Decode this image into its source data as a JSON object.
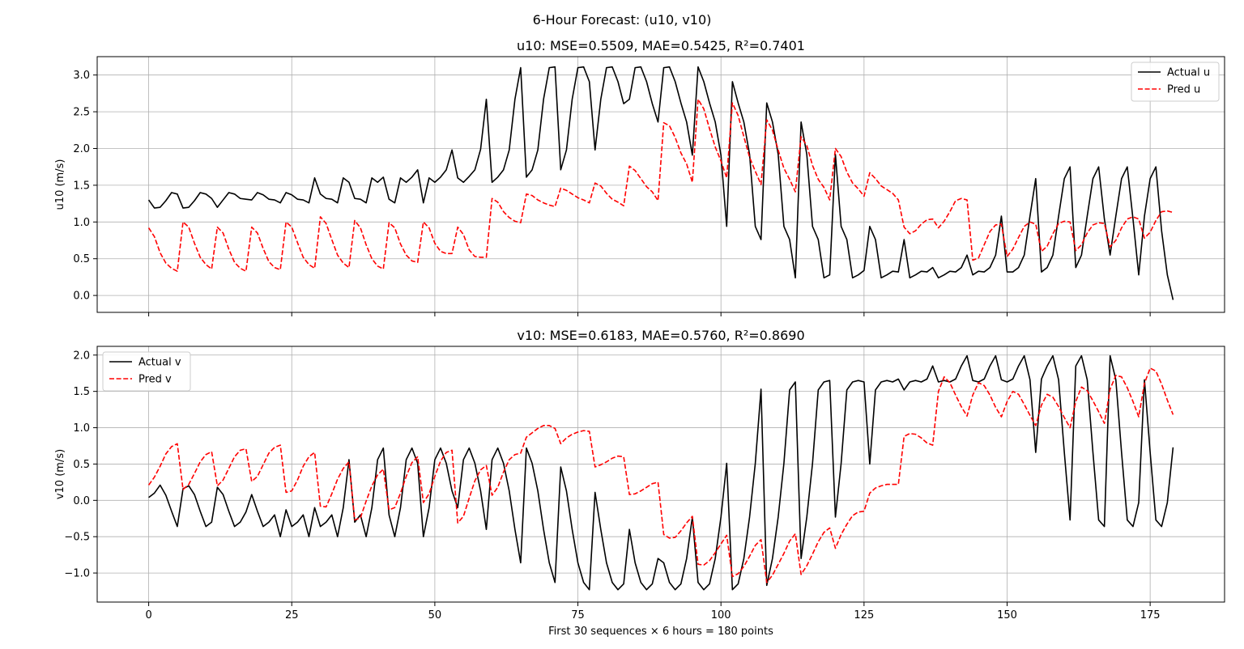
{
  "figure": {
    "title": "6-Hour Forecast: (u10, v10)",
    "xlabel": "First 30 sequences × 6 hours = 180 points"
  },
  "chart_data": [
    {
      "type": "line",
      "title": "u10: MSE=0.5509, MAE=0.5425, R²=0.7401",
      "xlabel": "",
      "ylabel": "u10 (m/s)",
      "xlim": [
        -9,
        188
      ],
      "ylim": [
        -0.23,
        3.25
      ],
      "xticks": [
        0,
        25,
        50,
        75,
        100,
        125,
        150,
        175
      ],
      "yticks": [
        0.0,
        0.5,
        1.0,
        1.5,
        2.0,
        2.5,
        3.0
      ],
      "ytick_labels": [
        "0.0",
        "0.5",
        "1.0",
        "1.5",
        "2.0",
        "2.5",
        "3.0"
      ],
      "grid": true,
      "legend_position": "upper right",
      "series": [
        {
          "name": "Actual u",
          "color": "#000000",
          "style": "solid",
          "values": [
            1.3,
            1.19,
            1.2,
            1.29,
            1.4,
            1.38,
            1.19,
            1.2,
            1.29,
            1.4,
            1.38,
            1.32,
            1.2,
            1.3,
            1.4,
            1.38,
            1.32,
            1.31,
            1.3,
            1.4,
            1.37,
            1.31,
            1.3,
            1.26,
            1.4,
            1.37,
            1.31,
            1.3,
            1.26,
            1.6,
            1.38,
            1.32,
            1.31,
            1.26,
            1.6,
            1.54,
            1.32,
            1.31,
            1.26,
            1.6,
            1.54,
            1.61,
            1.31,
            1.26,
            1.6,
            1.54,
            1.61,
            1.71,
            1.26,
            1.6,
            1.54,
            1.61,
            1.71,
            1.98,
            1.6,
            1.54,
            1.62,
            1.71,
            1.99,
            2.67,
            1.54,
            1.61,
            1.71,
            1.98,
            2.67,
            3.1,
            1.61,
            1.71,
            1.98,
            2.67,
            3.1,
            3.11,
            1.71,
            1.98,
            2.67,
            3.1,
            3.11,
            2.91,
            1.98,
            2.67,
            3.1,
            3.11,
            2.91,
            2.61,
            2.67,
            3.1,
            3.11,
            2.91,
            2.61,
            2.36,
            3.1,
            3.11,
            2.91,
            2.62,
            2.36,
            1.91,
            3.11,
            2.91,
            2.62,
            2.36,
            1.91,
            0.94,
            2.91,
            2.62,
            2.36,
            1.92,
            0.94,
            0.76,
            2.62,
            2.36,
            1.92,
            0.94,
            0.76,
            0.24,
            2.36,
            1.92,
            0.94,
            0.76,
            0.24,
            0.28,
            1.92,
            0.94,
            0.76,
            0.24,
            0.28,
            0.34,
            0.94,
            0.76,
            0.24,
            0.28,
            0.33,
            0.32,
            0.76,
            0.24,
            0.28,
            0.33,
            0.32,
            0.38,
            0.24,
            0.28,
            0.33,
            0.32,
            0.38,
            0.55,
            0.28,
            0.33,
            0.32,
            0.38,
            0.55,
            1.08,
            0.32,
            0.32,
            0.38,
            0.55,
            1.08,
            1.59,
            0.32,
            0.38,
            0.55,
            1.08,
            1.59,
            1.75,
            0.38,
            0.55,
            1.08,
            1.59,
            1.75,
            1.04,
            0.55,
            1.08,
            1.59,
            1.75,
            1.04,
            0.28,
            1.08,
            1.59,
            1.75,
            0.88,
            0.28,
            -0.06
          ]
        },
        {
          "name": "Pred u",
          "color": "#ff0000",
          "style": "dashed",
          "values": [
            0.92,
            0.8,
            0.58,
            0.44,
            0.37,
            0.33,
            1.0,
            0.93,
            0.71,
            0.52,
            0.42,
            0.36,
            0.93,
            0.85,
            0.63,
            0.45,
            0.37,
            0.33,
            0.93,
            0.85,
            0.64,
            0.46,
            0.38,
            0.35,
            1.0,
            0.93,
            0.72,
            0.52,
            0.42,
            0.37,
            1.07,
            0.98,
            0.76,
            0.55,
            0.44,
            0.38,
            1.02,
            0.92,
            0.69,
            0.5,
            0.4,
            0.36,
            0.99,
            0.92,
            0.7,
            0.55,
            0.47,
            0.45,
            1.0,
            0.92,
            0.71,
            0.6,
            0.57,
            0.57,
            0.93,
            0.83,
            0.62,
            0.53,
            0.52,
            0.52,
            1.32,
            1.27,
            1.14,
            1.06,
            1.01,
            0.99,
            1.38,
            1.36,
            1.3,
            1.26,
            1.23,
            1.21,
            1.46,
            1.43,
            1.38,
            1.33,
            1.3,
            1.26,
            1.53,
            1.49,
            1.39,
            1.31,
            1.27,
            1.22,
            1.76,
            1.7,
            1.59,
            1.48,
            1.41,
            1.29,
            2.35,
            2.31,
            2.15,
            1.94,
            1.79,
            1.54,
            2.67,
            2.54,
            2.27,
            2.02,
            1.83,
            1.6,
            2.62,
            2.45,
            2.16,
            1.88,
            1.69,
            1.51,
            2.39,
            2.25,
            1.98,
            1.73,
            1.58,
            1.41,
            2.16,
            2.04,
            1.77,
            1.58,
            1.47,
            1.3,
            2.0,
            1.89,
            1.68,
            1.53,
            1.45,
            1.35,
            1.67,
            1.59,
            1.49,
            1.44,
            1.39,
            1.3,
            0.93,
            0.84,
            0.88,
            0.97,
            1.03,
            1.04,
            0.92,
            1.01,
            1.14,
            1.29,
            1.32,
            1.3,
            0.48,
            0.51,
            0.69,
            0.87,
            0.96,
            0.97,
            0.53,
            0.63,
            0.79,
            0.94,
            1.0,
            0.97,
            0.6,
            0.67,
            0.84,
            0.98,
            1.01,
            1.0,
            0.61,
            0.69,
            0.85,
            0.96,
            0.99,
            0.98,
            0.66,
            0.75,
            0.92,
            1.04,
            1.07,
            1.04,
            0.78,
            0.86,
            1.02,
            1.14,
            1.15,
            1.13
          ]
        }
      ]
    },
    {
      "type": "line",
      "title": "v10: MSE=0.6183, MAE=0.5760, R²=0.8690",
      "xlabel": "First 30 sequences × 6 hours = 180 points",
      "ylabel": "v10 (m/s)",
      "xlim": [
        -9,
        188
      ],
      "ylim": [
        -1.4,
        2.12
      ],
      "xticks": [
        0,
        25,
        50,
        75,
        100,
        125,
        150,
        175
      ],
      "yticks": [
        -1.0,
        -0.5,
        0.0,
        0.5,
        1.0,
        1.5,
        2.0
      ],
      "ytick_labels": [
        "−1.0",
        "−0.5",
        "0.0",
        "0.5",
        "1.0",
        "1.5",
        "2.0"
      ],
      "grid": true,
      "legend_position": "upper left",
      "series": [
        {
          "name": "Actual v",
          "color": "#000000",
          "style": "solid",
          "values": [
            0.04,
            0.1,
            0.21,
            0.07,
            -0.15,
            -0.36,
            0.16,
            0.2,
            0.08,
            -0.15,
            -0.36,
            -0.3,
            0.18,
            0.08,
            -0.15,
            -0.36,
            -0.3,
            -0.16,
            0.08,
            -0.15,
            -0.36,
            -0.3,
            -0.2,
            -0.5,
            -0.13,
            -0.36,
            -0.3,
            -0.2,
            -0.5,
            -0.1,
            -0.36,
            -0.3,
            -0.2,
            -0.5,
            -0.1,
            0.56,
            -0.3,
            -0.2,
            -0.5,
            -0.1,
            0.56,
            0.72,
            -0.2,
            -0.5,
            -0.1,
            0.56,
            0.72,
            0.51,
            -0.5,
            -0.1,
            0.56,
            0.72,
            0.51,
            0.13,
            -0.1,
            0.56,
            0.72,
            0.51,
            0.13,
            -0.4,
            0.56,
            0.72,
            0.51,
            0.13,
            -0.4,
            -0.86,
            0.72,
            0.51,
            0.13,
            -0.4,
            -0.86,
            -1.13,
            0.46,
            0.13,
            -0.4,
            -0.86,
            -1.13,
            -1.23,
            0.11,
            -0.4,
            -0.86,
            -1.13,
            -1.23,
            -1.15,
            -0.4,
            -0.86,
            -1.13,
            -1.23,
            -1.15,
            -0.8,
            -0.86,
            -1.13,
            -1.23,
            -1.15,
            -0.8,
            -0.23,
            -1.13,
            -1.23,
            -1.15,
            -0.8,
            -0.23,
            0.51,
            -1.23,
            -1.15,
            -0.8,
            -0.23,
            0.51,
            1.53,
            -1.17,
            -0.8,
            -0.23,
            0.51,
            1.52,
            1.63,
            -0.8,
            -0.23,
            0.51,
            1.52,
            1.63,
            1.65,
            -0.23,
            0.51,
            1.52,
            1.63,
            1.65,
            1.63,
            0.5,
            1.52,
            1.63,
            1.65,
            1.63,
            1.67,
            1.52,
            1.63,
            1.65,
            1.63,
            1.67,
            1.85,
            1.63,
            1.65,
            1.63,
            1.67,
            1.85,
            1.99,
            1.65,
            1.63,
            1.67,
            1.85,
            1.99,
            1.66,
            1.63,
            1.67,
            1.85,
            1.99,
            1.66,
            0.66,
            1.67,
            1.85,
            1.99,
            1.66,
            0.66,
            -0.27,
            1.85,
            1.99,
            1.66,
            0.66,
            -0.27,
            -0.36,
            1.99,
            1.66,
            0.66,
            -0.27,
            -0.36,
            -0.03,
            1.66,
            0.66,
            -0.27,
            -0.36,
            -0.03,
            0.73
          ]
        },
        {
          "name": "Pred v",
          "color": "#ff0000",
          "style": "dashed",
          "values": [
            0.21,
            0.32,
            0.47,
            0.64,
            0.74,
            0.78,
            0.15,
            0.22,
            0.37,
            0.53,
            0.63,
            0.67,
            0.2,
            0.28,
            0.44,
            0.6,
            0.69,
            0.71,
            0.26,
            0.33,
            0.49,
            0.65,
            0.73,
            0.76,
            0.11,
            0.13,
            0.28,
            0.47,
            0.6,
            0.66,
            -0.08,
            -0.09,
            0.09,
            0.29,
            0.44,
            0.53,
            -0.27,
            -0.24,
            -0.01,
            0.2,
            0.35,
            0.43,
            -0.13,
            -0.1,
            0.1,
            0.33,
            0.52,
            0.6,
            -0.03,
            0.09,
            0.33,
            0.54,
            0.66,
            0.69,
            -0.31,
            -0.22,
            0.03,
            0.27,
            0.42,
            0.48,
            0.07,
            0.18,
            0.39,
            0.56,
            0.63,
            0.65,
            0.87,
            0.93,
            0.99,
            1.03,
            1.03,
            0.99,
            0.78,
            0.86,
            0.91,
            0.94,
            0.96,
            0.95,
            0.46,
            0.49,
            0.53,
            0.58,
            0.61,
            0.6,
            0.08,
            0.09,
            0.13,
            0.18,
            0.23,
            0.25,
            -0.47,
            -0.52,
            -0.51,
            -0.42,
            -0.31,
            -0.22,
            -0.88,
            -0.89,
            -0.83,
            -0.72,
            -0.6,
            -0.48,
            -1.05,
            -1.01,
            -0.91,
            -0.77,
            -0.62,
            -0.54,
            -1.13,
            -1.03,
            -0.88,
            -0.73,
            -0.56,
            -0.46,
            -1.02,
            -0.9,
            -0.74,
            -0.57,
            -0.44,
            -0.38,
            -0.66,
            -0.47,
            -0.33,
            -0.21,
            -0.16,
            -0.15,
            0.1,
            0.17,
            0.2,
            0.22,
            0.22,
            0.22,
            0.88,
            0.92,
            0.91,
            0.86,
            0.79,
            0.76,
            1.5,
            1.7,
            1.62,
            1.45,
            1.29,
            1.16,
            1.45,
            1.62,
            1.58,
            1.45,
            1.28,
            1.15,
            1.36,
            1.5,
            1.46,
            1.32,
            1.17,
            1.03,
            1.31,
            1.46,
            1.42,
            1.29,
            1.14,
            1.0,
            1.36,
            1.56,
            1.51,
            1.37,
            1.22,
            1.06,
            1.53,
            1.72,
            1.7,
            1.55,
            1.36,
            1.15,
            1.61,
            1.82,
            1.78,
            1.6,
            1.38,
            1.18
          ]
        }
      ]
    }
  ]
}
